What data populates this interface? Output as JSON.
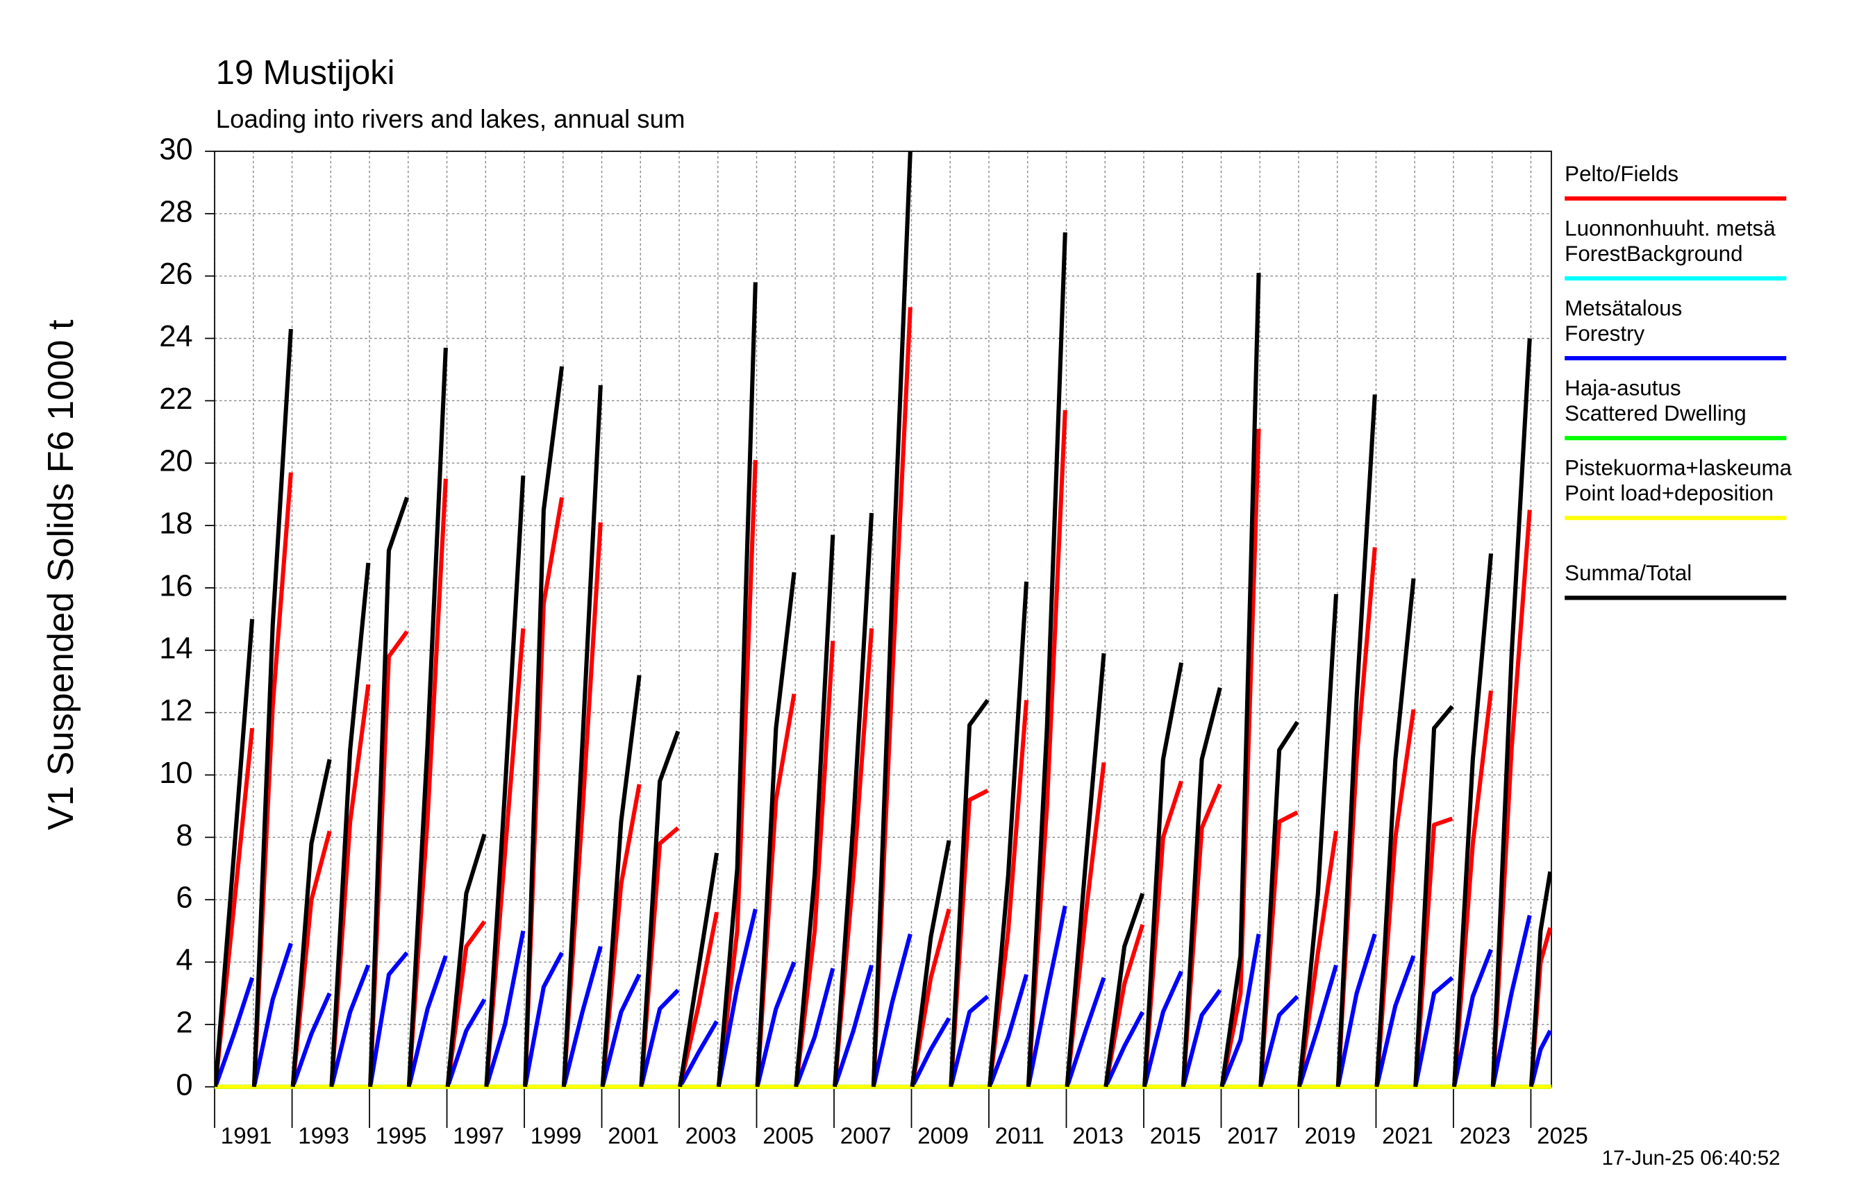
{
  "chart_data": {
    "type": "line",
    "title": "19 Mustijoki",
    "subtitle": "Loading into rivers and lakes, annual sum",
    "y_label": "V1 Suspended Solids F6 1000 t",
    "timestamp": "17-Jun-25 06:40:52",
    "xlim": [
      1991,
      2025.53
    ],
    "ylim": [
      0,
      30
    ],
    "xticks": [
      1991,
      1993,
      1995,
      1997,
      1999,
      2001,
      2003,
      2005,
      2007,
      2009,
      2011,
      2013,
      2015,
      2017,
      2019,
      2021,
      2023,
      2025
    ],
    "yticks": [
      0,
      2,
      4,
      6,
      8,
      10,
      12,
      14,
      16,
      18,
      20,
      22,
      24,
      26,
      28,
      30
    ],
    "grid": true,
    "legend": "right",
    "x": [
      1991.02,
      1991.5,
      1991.97,
      1991.99,
      1992.02,
      1992.5,
      1992.97,
      1992.99,
      1993.02,
      1993.5,
      1993.97,
      1993.99,
      1994.02,
      1994.5,
      1994.97,
      1994.99,
      1995.02,
      1995.5,
      1995.97,
      1995.99,
      1996.02,
      1996.5,
      1996.97,
      1996.99,
      1997.02,
      1997.5,
      1997.97,
      1997.99,
      1998.02,
      1998.5,
      1998.97,
      1998.99,
      1999.02,
      1999.5,
      1999.97,
      1999.99,
      2000.02,
      2000.5,
      2000.97,
      2000.99,
      2001.02,
      2001.5,
      2001.97,
      2001.99,
      2002.02,
      2002.5,
      2002.97,
      2002.99,
      2003.02,
      2003.5,
      2003.97,
      2003.99,
      2004.02,
      2004.5,
      2004.97,
      2004.99,
      2005.02,
      2005.5,
      2005.97,
      2005.99,
      2006.02,
      2006.5,
      2006.97,
      2006.99,
      2007.02,
      2007.5,
      2007.97,
      2007.99,
      2008.02,
      2008.5,
      2008.97,
      2008.99,
      2009.02,
      2009.5,
      2009.97,
      2009.99,
      2010.02,
      2010.5,
      2010.97,
      2010.99,
      2011.02,
      2011.5,
      2011.97,
      2011.99,
      2012.02,
      2012.5,
      2012.97,
      2012.99,
      2013.02,
      2013.5,
      2013.97,
      2013.99,
      2014.02,
      2014.5,
      2014.97,
      2014.99,
      2015.02,
      2015.5,
      2015.97,
      2015.99,
      2016.02,
      2016.5,
      2016.97,
      2016.99,
      2017.02,
      2017.5,
      2017.97,
      2017.99,
      2018.02,
      2018.5,
      2018.97,
      2018.99,
      2019.02,
      2019.5,
      2019.97,
      2019.99,
      2020.02,
      2020.5,
      2020.97,
      2020.99,
      2021.02,
      2021.5,
      2021.97,
      2021.99,
      2022.02,
      2022.5,
      2022.97,
      2022.99,
      2023.02,
      2023.5,
      2023.97,
      2023.99,
      2024.02,
      2024.5,
      2024.97,
      2024.99,
      2025.01,
      2025.25,
      2025.5,
      2025.52
    ],
    "series": [
      {
        "name": "Pelto/Fields",
        "color": "#ff0000",
        "values": [
          0,
          5.8,
          11.5,
          null,
          0,
          12.2,
          19.7,
          null,
          0,
          6.0,
          8.2,
          null,
          0,
          8.5,
          12.9,
          null,
          0,
          13.8,
          14.6,
          null,
          0,
          8.6,
          19.5,
          null,
          0,
          4.5,
          5.3,
          null,
          0,
          7.5,
          14.7,
          null,
          0,
          15.5,
          18.9,
          null,
          0,
          8.8,
          18.1,
          null,
          0,
          6.5,
          9.7,
          null,
          0,
          7.8,
          8.3,
          null,
          0,
          2.6,
          5.6,
          null,
          0,
          5.0,
          20.1,
          null,
          0,
          9.2,
          12.6,
          null,
          0,
          5.0,
          14.3,
          null,
          0,
          6.8,
          14.7,
          null,
          0,
          13.0,
          25.0,
          null,
          0,
          3.5,
          5.7,
          null,
          0,
          9.2,
          9.5,
          null,
          0,
          5.0,
          12.4,
          null,
          0,
          9.0,
          21.7,
          null,
          0,
          5.5,
          10.4,
          null,
          0,
          3.3,
          5.2,
          null,
          0,
          8.0,
          9.8,
          null,
          0,
          8.3,
          9.7,
          null,
          0,
          3.0,
          21.1,
          null,
          0,
          8.5,
          8.8,
          null,
          0,
          4.3,
          8.2,
          null,
          0,
          10.5,
          17.3,
          null,
          0,
          8.0,
          12.1,
          null,
          0,
          8.4,
          8.6,
          null,
          0,
          7.8,
          12.7,
          null,
          0,
          10.8,
          18.5,
          null,
          0,
          4.0,
          5.1,
          null
        ]
      },
      {
        "name": "Luonnonhuuht. metsä\nForestBackground",
        "color": "#00ffff",
        "x": [
          1991,
          2025.53
        ],
        "values": [
          0,
          0
        ]
      },
      {
        "name": "Metsätalous\nForestry",
        "color": "#0000ff",
        "values": [
          0,
          1.7,
          3.5,
          null,
          0,
          2.8,
          4.6,
          null,
          0,
          1.7,
          3.0,
          null,
          0,
          2.4,
          3.9,
          null,
          0,
          3.6,
          4.3,
          null,
          0,
          2.5,
          4.2,
          null,
          0,
          1.8,
          2.8,
          null,
          0,
          2.0,
          5.0,
          null,
          0,
          3.2,
          4.3,
          null,
          0,
          2.4,
          4.5,
          null,
          0,
          2.4,
          3.6,
          null,
          0,
          2.5,
          3.1,
          null,
          0,
          1.1,
          2.1,
          null,
          0,
          3.2,
          5.7,
          null,
          0,
          2.5,
          4.0,
          null,
          0,
          1.6,
          3.8,
          null,
          0,
          1.8,
          3.9,
          null,
          0,
          2.7,
          4.9,
          null,
          0,
          1.2,
          2.2,
          null,
          0,
          2.4,
          2.9,
          null,
          0,
          1.6,
          3.6,
          null,
          0,
          3.0,
          5.8,
          null,
          0,
          1.8,
          3.5,
          null,
          0,
          1.3,
          2.4,
          null,
          0,
          2.4,
          3.7,
          null,
          0,
          2.3,
          3.1,
          null,
          0,
          1.5,
          4.9,
          null,
          0,
          2.3,
          2.9,
          null,
          0,
          1.9,
          3.9,
          null,
          0,
          3.0,
          4.9,
          null,
          0,
          2.6,
          4.2,
          null,
          0,
          3.0,
          3.5,
          null,
          0,
          2.9,
          4.4,
          null,
          0,
          3.0,
          5.5,
          null,
          0,
          1.2,
          1.8,
          null
        ]
      },
      {
        "name": "Haja-asutus\nScattered Dwelling",
        "color": "#00ff00",
        "x": [
          1991,
          2025.53
        ],
        "values": [
          0,
          0
        ]
      },
      {
        "name": "Pistekuorma+laskeuma\nPoint load+deposition",
        "color": "#ffff00",
        "x": [
          1991,
          2025.53
        ],
        "values": [
          0,
          0
        ]
      },
      {
        "name": "Summa/Total",
        "color": "#000000",
        "values": [
          0,
          7.5,
          15.0,
          null,
          0,
          14.8,
          24.3,
          null,
          0,
          7.8,
          10.5,
          null,
          0,
          10.8,
          16.8,
          null,
          0,
          17.2,
          18.9,
          null,
          0,
          11.0,
          23.7,
          null,
          0,
          6.2,
          8.1,
          null,
          0,
          9.5,
          19.6,
          null,
          0,
          18.5,
          23.1,
          null,
          0,
          11.0,
          22.5,
          null,
          0,
          8.5,
          13.2,
          null,
          0,
          9.8,
          11.4,
          null,
          0,
          3.8,
          7.5,
          null,
          0,
          7.0,
          25.8,
          null,
          0,
          11.5,
          16.5,
          null,
          0,
          6.8,
          17.7,
          null,
          0,
          8.5,
          18.4,
          null,
          0,
          15.8,
          30.0,
          null,
          0,
          4.8,
          7.9,
          null,
          0,
          11.6,
          12.4,
          null,
          0,
          6.8,
          16.2,
          null,
          0,
          11.5,
          27.4,
          null,
          0,
          7.2,
          13.9,
          null,
          0,
          4.5,
          6.2,
          null,
          0,
          10.5,
          13.6,
          null,
          0,
          10.5,
          12.8,
          null,
          0,
          4.2,
          26.1,
          null,
          0,
          10.8,
          11.7,
          null,
          0,
          6.2,
          15.8,
          null,
          0,
          12.5,
          22.2,
          null,
          0,
          10.5,
          16.3,
          null,
          0,
          11.5,
          12.2,
          null,
          0,
          10.5,
          17.1,
          null,
          0,
          13.8,
          24.0,
          null,
          0,
          5.0,
          6.9,
          null
        ]
      }
    ]
  }
}
